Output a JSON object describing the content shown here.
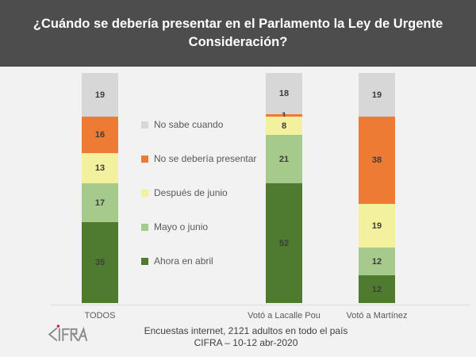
{
  "title": "¿Cuándo se debería presentar en el Parlamento la Ley de Urgente Consideración?",
  "chart_data": {
    "type": "bar",
    "stacked": true,
    "orientation": "vertical",
    "categories": [
      "TODOS",
      "Votó a Lacalle Pou",
      "Votó a Martínez"
    ],
    "series": [
      {
        "name": "Ahora en abril",
        "color": "#4e7b2f",
        "values": [
          35,
          52,
          12
        ]
      },
      {
        "name": "Mayo o junio",
        "color": "#a6c98c",
        "values": [
          17,
          21,
          12
        ]
      },
      {
        "name": "Después de junio",
        "color": "#f3f09e",
        "values": [
          13,
          8,
          19
        ]
      },
      {
        "name": "No se debería presentar",
        "color": "#ee7b33",
        "values": [
          16,
          1,
          38
        ]
      },
      {
        "name": "No sabe cuando",
        "color": "#d7d7d7",
        "values": [
          19,
          18,
          19
        ]
      }
    ],
    "ylim": [
      0,
      100
    ],
    "grid": false,
    "legend_position": "left-of-center, top-to-bottom reversed stack order",
    "data_labels": true
  },
  "footer": {
    "line1": "Encuestas internet, 2121 adultos en todo el país",
    "line2": "CIFRA – 10-12 abr-2020",
    "logo_name": "CIFRA"
  },
  "colors": {
    "header_bg": "#4d4d4d",
    "body_bg": "#f2f2f2",
    "title_text": "#ffffff",
    "segment_label": "#3d3d3d",
    "axis_text": "#595959",
    "logo_gray": "#8a8a8a",
    "logo_dot_red": "#dd1a1a"
  }
}
